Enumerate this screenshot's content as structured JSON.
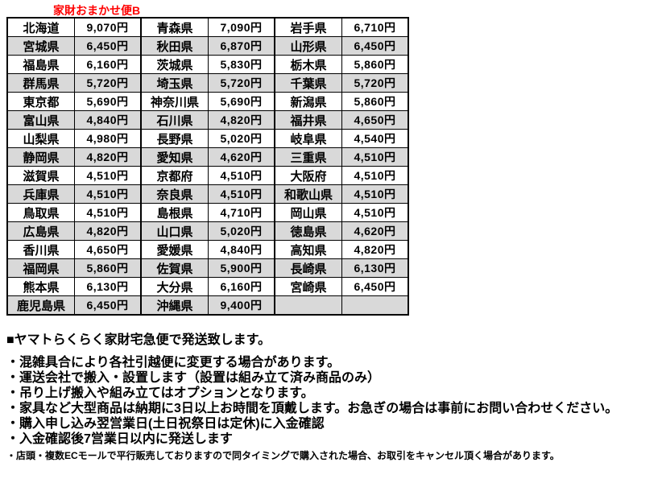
{
  "title": "家財おまかせ便B",
  "table": {
    "description": "prefecture shipping fee table, 3 pairs of prefecture/price columns",
    "rows": [
      [
        "北海道",
        "9,070円",
        "青森県",
        "7,090円",
        "岩手県",
        "6,710円"
      ],
      [
        "宮城県",
        "6,450円",
        "秋田県",
        "6,870円",
        "山形県",
        "6,450円"
      ],
      [
        "福島県",
        "6,160円",
        "茨城県",
        "5,830円",
        "栃木県",
        "5,860円"
      ],
      [
        "群馬県",
        "5,720円",
        "埼玉県",
        "5,720円",
        "千葉県",
        "5,720円"
      ],
      [
        "東京都",
        "5,690円",
        "神奈川県",
        "5,690円",
        "新潟県",
        "5,860円"
      ],
      [
        "富山県",
        "4,840円",
        "石川県",
        "4,820円",
        "福井県",
        "4,650円"
      ],
      [
        "山梨県",
        "4,980円",
        "長野県",
        "5,020円",
        "岐阜県",
        "4,540円"
      ],
      [
        "静岡県",
        "4,820円",
        "愛知県",
        "4,620円",
        "三重県",
        "4,510円"
      ],
      [
        "滋賀県",
        "4,510円",
        "京都府",
        "4,510円",
        "大阪府",
        "4,510円"
      ],
      [
        "兵庫県",
        "4,510円",
        "奈良県",
        "4,510円",
        "和歌山県",
        "4,510円"
      ],
      [
        "鳥取県",
        "4,510円",
        "島根県",
        "4,710円",
        "岡山県",
        "4,510円"
      ],
      [
        "広島県",
        "4,820円",
        "山口県",
        "5,020円",
        "徳島県",
        "4,620円"
      ],
      [
        "香川県",
        "4,650円",
        "愛媛県",
        "4,840円",
        "高知県",
        "4,820円"
      ],
      [
        "福岡県",
        "5,860円",
        "佐賀県",
        "5,900円",
        "長崎県",
        "6,130円"
      ],
      [
        "熊本県",
        "6,130円",
        "大分県",
        "6,160円",
        "宮崎県",
        "6,450円"
      ],
      [
        "鹿児島県",
        "6,450円",
        "沖縄県",
        "9,400円",
        "",
        ""
      ]
    ]
  },
  "notes": {
    "heading": "■ヤマトらくらく家財宅急便で発送致します。",
    "bullets": [
      "・混雑具合により各社引越便に変更する場合があります。",
      "・運送会社で搬入・設置します（設置は組み立て済み商品のみ）",
      "・吊り上げ搬入や組み立てはオプションとなります。",
      "・家具など大型商品は納期に3日以上お時間を頂戴します。お急ぎの場合は事前にお問い合わせください。",
      "・購入申し込み翌営業日(土日祝祭日は定休)に入金確認",
      "・入金確認後7営業日以内に発送します"
    ],
    "fine_print": "・店頭・複数ECモールで平行販売しておりますので同タイミングで購入された場合、お取引をキャンセル頂く場合があります。"
  },
  "colors": {
    "title_red": "#ff0000",
    "row_alt_gray": "#d9d9d9",
    "border": "#000000",
    "text": "#000000",
    "background": "#ffffff"
  }
}
